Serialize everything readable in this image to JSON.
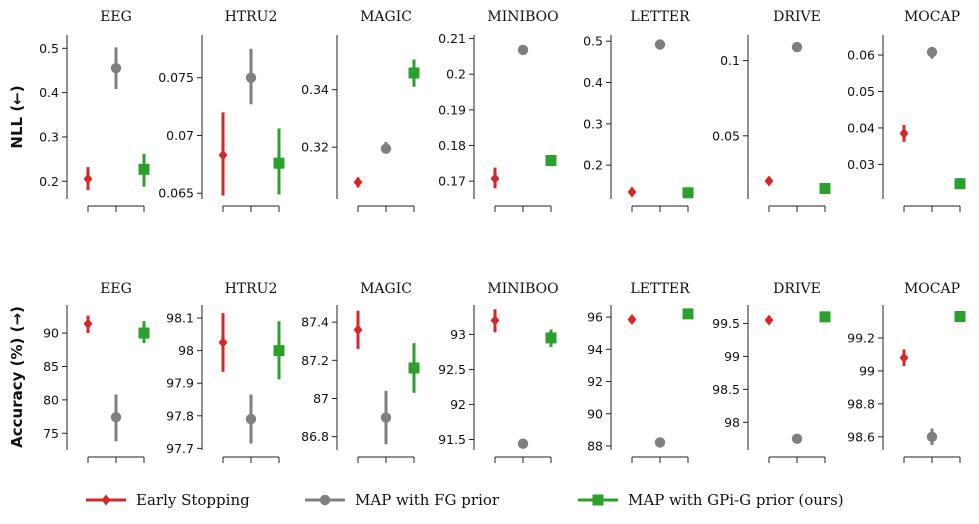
{
  "chart_data": {
    "type": "scatter",
    "row_labels": [
      "NLL (←)",
      "Accuracy (%) (→)"
    ],
    "legend": {
      "position": "bottom",
      "entries": [
        {
          "name": "Early Stopping",
          "color": "#d62728",
          "marker": "diamond"
        },
        {
          "name": "MAP with FG prior",
          "color": "#7f7f7f",
          "marker": "circle"
        },
        {
          "name": "MAP with GPi-G prior (ours)",
          "color": "#2ca02c",
          "marker": "square"
        }
      ]
    },
    "panels": [
      {
        "row": 0,
        "col": 0,
        "title": "EEG",
        "ylim": [
          0.16,
          0.53
        ],
        "yticks": [
          0.2,
          0.3,
          0.4,
          0.5
        ],
        "ytick_labels": [
          "0.2",
          "0.3",
          "0.4",
          "0.5"
        ],
        "points": [
          {
            "mean": 0.205,
            "low": 0.18,
            "high": 0.232
          },
          {
            "mean": 0.455,
            "low": 0.408,
            "high": 0.502
          },
          {
            "mean": 0.227,
            "low": 0.188,
            "high": 0.262
          }
        ]
      },
      {
        "row": 0,
        "col": 1,
        "title": "HTRU2",
        "ylim": [
          0.0645,
          0.0787
        ],
        "yticks": [
          0.065,
          0.07,
          0.075
        ],
        "ytick_labels": [
          "0.065",
          "0.07",
          "0.075"
        ],
        "points": [
          {
            "mean": 0.0683,
            "low": 0.0648,
            "high": 0.072
          },
          {
            "mean": 0.075,
            "low": 0.0727,
            "high": 0.0775
          },
          {
            "mean": 0.0676,
            "low": 0.0649,
            "high": 0.0706
          }
        ]
      },
      {
        "row": 0,
        "col": 2,
        "title": "MAGIC",
        "ylim": [
          0.302,
          0.359
        ],
        "yticks": [
          0.32,
          0.34
        ],
        "ytick_labels": [
          "0.32",
          "0.34"
        ],
        "points": [
          {
            "mean": 0.3078,
            "low": 0.306,
            "high": 0.3095
          },
          {
            "mean": 0.3195,
            "low": 0.3178,
            "high": 0.3218
          },
          {
            "mean": 0.3458,
            "low": 0.341,
            "high": 0.3505
          }
        ]
      },
      {
        "row": 0,
        "col": 3,
        "title": "MINIBOO",
        "ylim": [
          0.165,
          0.211
        ],
        "yticks": [
          0.17,
          0.18,
          0.19,
          0.2,
          0.21
        ],
        "ytick_labels": [
          "0.17",
          "0.18",
          "0.19",
          "0.2",
          "0.21"
        ],
        "points": [
          {
            "mean": 0.1707,
            "low": 0.168,
            "high": 0.1738
          },
          {
            "mean": 0.2068,
            "low": 0.2058,
            "high": 0.2078
          },
          {
            "mean": 0.1758,
            "low": 0.1742,
            "high": 0.1773
          }
        ]
      },
      {
        "row": 0,
        "col": 4,
        "title": "LETTER",
        "ylim": [
          0.118,
          0.515
        ],
        "yticks": [
          0.2,
          0.3,
          0.4,
          0.5
        ],
        "ytick_labels": [
          "0.2",
          "0.3",
          "0.4",
          "0.5"
        ],
        "points": [
          {
            "mean": 0.135,
            "low": 0.13,
            "high": 0.14
          },
          {
            "mean": 0.492,
            "low": 0.487,
            "high": 0.497
          },
          {
            "mean": 0.133,
            "low": 0.128,
            "high": 0.138
          }
        ]
      },
      {
        "row": 0,
        "col": 5,
        "title": "DRIVE",
        "ylim": [
          0.008,
          0.117
        ],
        "yticks": [
          0.05,
          0.1
        ],
        "ytick_labels": [
          "0.05",
          "0.1"
        ],
        "points": [
          {
            "mean": 0.02,
            "low": 0.018,
            "high": 0.022
          },
          {
            "mean": 0.109,
            "low": 0.107,
            "high": 0.111
          },
          {
            "mean": 0.015,
            "low": 0.013,
            "high": 0.017
          }
        ]
      },
      {
        "row": 0,
        "col": 6,
        "title": "MOCAP",
        "ylim": [
          0.0205,
          0.0655
        ],
        "yticks": [
          0.03,
          0.04,
          0.05,
          0.06
        ],
        "ytick_labels": [
          "0.03",
          "0.04",
          "0.05",
          "0.06"
        ],
        "points": [
          {
            "mean": 0.0385,
            "low": 0.0362,
            "high": 0.0408
          },
          {
            "mean": 0.0608,
            "low": 0.059,
            "high": 0.0622
          },
          {
            "mean": 0.0247,
            "low": 0.0232,
            "high": 0.0262
          }
        ]
      },
      {
        "row": 1,
        "col": 0,
        "title": "EEG",
        "ylim": [
          72.5,
          94.2
        ],
        "yticks": [
          75,
          80,
          85,
          90
        ],
        "ytick_labels": [
          "75",
          "80",
          "85",
          "90"
        ],
        "points": [
          {
            "mean": 91.4,
            "low": 90.0,
            "high": 92.6
          },
          {
            "mean": 77.4,
            "low": 73.8,
            "high": 80.8
          },
          {
            "mean": 90.0,
            "low": 88.5,
            "high": 91.8
          }
        ]
      },
      {
        "row": 1,
        "col": 1,
        "title": "HTRU2",
        "ylim": [
          97.695,
          98.14
        ],
        "yticks": [
          97.7,
          97.8,
          97.9,
          98,
          98.1
        ],
        "ytick_labels": [
          "97.7",
          "97.8",
          "97.9",
          "98",
          "98.1"
        ],
        "points": [
          {
            "mean": 98.025,
            "low": 97.935,
            "high": 98.115
          },
          {
            "mean": 97.79,
            "low": 97.715,
            "high": 97.865
          },
          {
            "mean": 98.0,
            "low": 97.912,
            "high": 98.09
          }
        ]
      },
      {
        "row": 1,
        "col": 2,
        "title": "MAGIC",
        "ylim": [
          86.73,
          87.49
        ],
        "yticks": [
          86.8,
          87,
          87.2,
          87.4
        ],
        "ytick_labels": [
          "86.8",
          "87",
          "87.2",
          "87.4"
        ],
        "points": [
          {
            "mean": 87.36,
            "low": 87.26,
            "high": 87.46
          },
          {
            "mean": 86.9,
            "low": 86.76,
            "high": 87.04
          },
          {
            "mean": 87.16,
            "low": 87.03,
            "high": 87.29
          }
        ]
      },
      {
        "row": 1,
        "col": 3,
        "title": "MINIBOO",
        "ylim": [
          91.35,
          93.42
        ],
        "yticks": [
          91.5,
          92,
          92.5,
          93
        ],
        "ytick_labels": [
          "91.5",
          "92",
          "92.5",
          "93"
        ],
        "points": [
          {
            "mean": 93.2,
            "low": 93.03,
            "high": 93.36
          },
          {
            "mean": 91.44,
            "low": 91.38,
            "high": 91.5
          },
          {
            "mean": 92.95,
            "low": 92.82,
            "high": 93.07
          }
        ]
      },
      {
        "row": 1,
        "col": 4,
        "title": "LETTER",
        "ylim": [
          87.75,
          96.75
        ],
        "yticks": [
          88,
          90,
          92,
          94,
          96
        ],
        "ytick_labels": [
          "88",
          "90",
          "92",
          "94",
          "96"
        ],
        "points": [
          {
            "mean": 95.85,
            "low": 95.7,
            "high": 96.0
          },
          {
            "mean": 88.22,
            "low": 88.1,
            "high": 88.35
          },
          {
            "mean": 96.2,
            "low": 96.05,
            "high": 96.35
          }
        ]
      },
      {
        "row": 1,
        "col": 5,
        "title": "DRIVE",
        "ylim": [
          97.58,
          99.78
        ],
        "yticks": [
          98,
          98.5,
          99,
          99.5
        ],
        "ytick_labels": [
          "98",
          "98.5",
          "99",
          "99.5"
        ],
        "points": [
          {
            "mean": 99.55,
            "low": 99.51,
            "high": 99.59
          },
          {
            "mean": 97.75,
            "low": 97.7,
            "high": 97.81
          },
          {
            "mean": 99.6,
            "low": 99.56,
            "high": 99.64
          }
        ]
      },
      {
        "row": 1,
        "col": 6,
        "title": "MOCAP",
        "ylim": [
          98.52,
          99.4
        ],
        "yticks": [
          98.6,
          98.8,
          99,
          99.2
        ],
        "ytick_labels": [
          "98.6",
          "98.8",
          "99",
          "99.2"
        ],
        "points": [
          {
            "mean": 99.08,
            "low": 99.03,
            "high": 99.13
          },
          {
            "mean": 98.6,
            "low": 98.55,
            "high": 98.65
          },
          {
            "mean": 99.33,
            "low": 99.3,
            "high": 99.36
          }
        ]
      }
    ]
  }
}
